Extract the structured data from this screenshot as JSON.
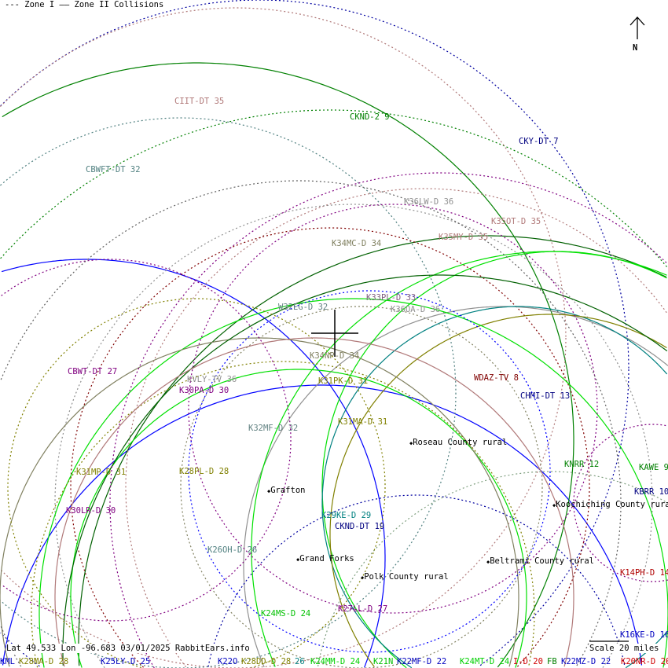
{
  "legend": {
    "zone1": "--- Zone I",
    "zone2": "—— Zone II Collisions"
  },
  "north_label": "N",
  "info_line": "Lat 49.533 Lon -96.683 03/01/2025 RabbitEars.info",
  "scale_label": "Scale 20 miles",
  "stations": [
    {
      "label": "CIIT-DT 35",
      "color": "#b07878"
    },
    {
      "label": "CKND-2 9",
      "color": "#008000"
    },
    {
      "label": "CKY-DT 7",
      "color": "#000080"
    },
    {
      "label": "CBWFT-DT 32",
      "color": "#508080"
    },
    {
      "label": "K36LW-D 36",
      "color": "#909090"
    },
    {
      "label": "K35OT-D 35",
      "color": "#b07878"
    },
    {
      "label": "K35MY-D 35",
      "color": "#b07878"
    },
    {
      "label": "K34MC-D 34",
      "color": "#808060"
    },
    {
      "label": "K33PL-D 33",
      "color": "#806080"
    },
    {
      "label": "W32EG-D 32",
      "color": "#608080"
    },
    {
      "label": "K36OA-D 36",
      "color": "#909090"
    },
    {
      "label": "K34NP-D 34",
      "color": "#808060"
    },
    {
      "label": "CBWT-DT 27",
      "color": "#800080"
    },
    {
      "label": "WDAZ-TV 8",
      "color": "#800000"
    },
    {
      "label": "KVLY-TV 36",
      "color": "#909090"
    },
    {
      "label": "K31PK-D 31",
      "color": "#808000"
    },
    {
      "label": "K30PA-D 30",
      "color": "#800080"
    },
    {
      "label": "CHMI-DT 13",
      "color": "#000080"
    },
    {
      "label": "K31MA-D 31",
      "color": "#808000"
    },
    {
      "label": "K32MF-D 32",
      "color": "#608080"
    },
    {
      "label": "KNRR 12",
      "color": "#008000"
    },
    {
      "label": "KAWE 9",
      "color": "#008000"
    },
    {
      "label": "K31MP-D 31",
      "color": "#808000"
    },
    {
      "label": "K28PL-D 28",
      "color": "#808000"
    },
    {
      "label": "KBRR 10",
      "color": "#000080"
    },
    {
      "label": "K30LR-D 30",
      "color": "#800080"
    },
    {
      "label": "K29KE-D 29",
      "color": "#008080"
    },
    {
      "label": "CKND-DT 19",
      "color": "#000080"
    },
    {
      "label": "K26OH-D 26",
      "color": "#508080"
    },
    {
      "label": "K14PH-D 14",
      "color": "#b00000"
    },
    {
      "label": "K24MS-D 24",
      "color": "#00c000"
    },
    {
      "label": "K27LL-D 27",
      "color": "#800080"
    },
    {
      "label": "K16KE-D 16",
      "color": "#0000c0"
    },
    {
      "label": "KML",
      "color": "#0000c0"
    },
    {
      "label": "K28MA-D 28",
      "color": "#808000"
    },
    {
      "label": "K25LY-D 25",
      "color": "#0000c0"
    },
    {
      "label": "K22O",
      "color": "#0000c0"
    },
    {
      "label": "K28DD-D 28",
      "color": "#808000"
    },
    {
      "label": "26",
      "color": "#008080"
    },
    {
      "label": "K24MM-D 24",
      "color": "#00d000"
    },
    {
      "label": "K21N",
      "color": "#00c000"
    },
    {
      "label": "K22MF-D 22",
      "color": "#0000c0"
    },
    {
      "label": "K24MT-D 24",
      "color": "#00d000"
    },
    {
      "label": "I-D 20",
      "color": "#d00000"
    },
    {
      "label": "FB",
      "color": "#008000"
    },
    {
      "label": "K22MZ-D 22",
      "color": "#0000c0"
    },
    {
      "label": "K20NR-D 20",
      "color": "#d00000"
    }
  ],
  "places": [
    {
      "label": "Roseau County rural"
    },
    {
      "label": "Grafton"
    },
    {
      "label": "Koochiching County rural"
    },
    {
      "label": "Grand Forks"
    },
    {
      "label": "Beltrami County rural"
    },
    {
      "label": "Polk County rural"
    }
  ]
}
